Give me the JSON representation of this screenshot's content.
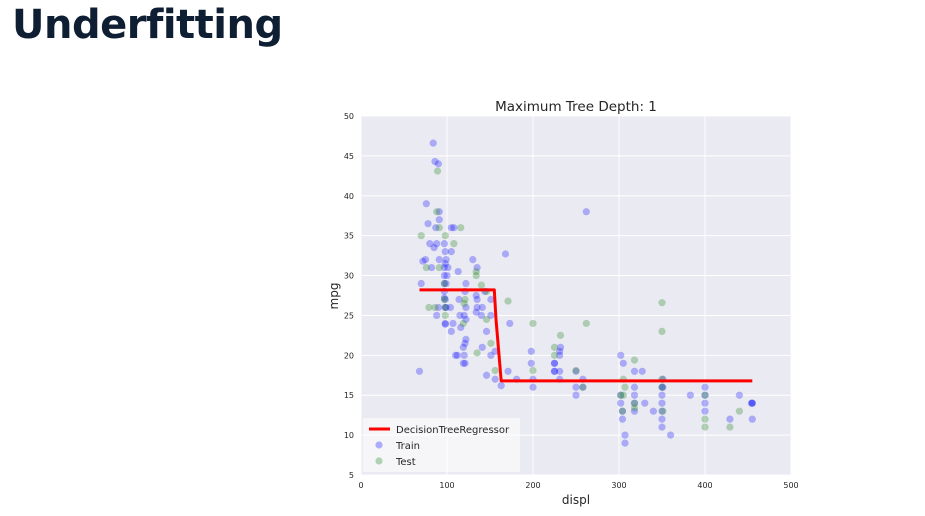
{
  "slide": {
    "title": "Underfitting"
  },
  "chart_data": {
    "type": "scatter",
    "title": "Maximum Tree Depth: 1",
    "xlabel": "displ",
    "ylabel": "mpg",
    "xlim": [
      0,
      500
    ],
    "ylim": [
      5,
      50
    ],
    "xticks": [
      0,
      100,
      200,
      300,
      400,
      500
    ],
    "yticks": [
      5,
      10,
      15,
      20,
      25,
      30,
      35,
      40,
      45,
      50
    ],
    "grid": true,
    "legend_position": "lower-left",
    "legend": [
      "DecisionTreeRegressor",
      "Train",
      "Test"
    ],
    "colors": {
      "plot_bg": "#eaeaf2",
      "grid": "#ffffff",
      "line": "#ff0000",
      "train": "#0000ff",
      "test": "#2e8b2e"
    },
    "line_series": {
      "name": "DecisionTreeRegressor",
      "x": [
        68,
        155,
        157,
        163,
        455
      ],
      "y": [
        28.2,
        28.2,
        24.5,
        16.8,
        16.8
      ]
    },
    "series": [
      {
        "name": "Train",
        "x": [
          68,
          70,
          72,
          75,
          76,
          78,
          80,
          82,
          84,
          85,
          86,
          87,
          88,
          88,
          90,
          90,
          91,
          91,
          91,
          97,
          97,
          97,
          97,
          97,
          97,
          98,
          98,
          98,
          98,
          98,
          98,
          99,
          99,
          99,
          100,
          101,
          104,
          105,
          105,
          105,
          107,
          108,
          110,
          112,
          113,
          114,
          115,
          116,
          119,
          119,
          120,
          120,
          121,
          121,
          121,
          122,
          122,
          122,
          122,
          130,
          134,
          134,
          135,
          135,
          135,
          140,
          141,
          141,
          144,
          146,
          146,
          151,
          151,
          151,
          156,
          156,
          163,
          168,
          171,
          173,
          181,
          198,
          198,
          200,
          200,
          225,
          225,
          225,
          225,
          231,
          231,
          231,
          231,
          232,
          250,
          250,
          250,
          258,
          258,
          262,
          302,
          302,
          302,
          304,
          304,
          305,
          307,
          307,
          318,
          318,
          318,
          318,
          318,
          327,
          330,
          340,
          350,
          350,
          350,
          350,
          350,
          350,
          351,
          351,
          360,
          383,
          400,
          400,
          400,
          400,
          429,
          440,
          454,
          455,
          455,
          455
        ],
        "y": [
          18,
          29,
          31.8,
          32,
          39,
          36.5,
          34,
          31,
          46.6,
          33.5,
          44.3,
          36,
          25,
          34,
          44,
          26,
          38,
          32,
          37,
          27.2,
          31,
          30,
          34,
          29,
          28,
          23.9,
          27,
          33,
          26,
          31.5,
          24,
          29,
          32,
          26,
          30,
          31,
          26,
          36,
          23,
          33,
          24,
          36,
          20,
          20,
          30.5,
          27,
          25,
          23.5,
          21,
          19,
          25,
          20,
          19,
          28,
          21.5,
          22,
          26,
          29,
          24.5,
          32,
          25.4,
          27.5,
          27,
          26,
          31,
          25,
          21,
          26,
          28,
          17.5,
          23,
          20,
          27,
          25,
          17,
          20.5,
          16.2,
          32.7,
          18,
          24,
          17,
          19,
          20.5,
          17,
          16,
          18,
          19,
          18,
          19,
          18,
          17,
          20.5,
          20,
          21,
          16,
          18,
          15,
          17,
          16,
          38,
          15,
          14,
          20,
          12,
          13,
          19,
          9,
          10,
          15,
          16,
          18,
          14,
          13,
          18,
          14,
          13,
          15,
          16,
          12,
          14,
          13,
          11,
          16,
          17,
          10,
          15,
          14,
          15,
          16,
          13,
          12,
          15,
          14,
          14,
          14,
          12
        ],
        "marker": "circle",
        "alpha": 0.28
      },
      {
        "name": "Test",
        "x": [
          70,
          76,
          79,
          86,
          88,
          89,
          91,
          91,
          97,
          97,
          98,
          98,
          98,
          108,
          116,
          119,
          120,
          121,
          134,
          134,
          135,
          140,
          146,
          146,
          151,
          156,
          171,
          200,
          200,
          225,
          225,
          232,
          250,
          258,
          262,
          302,
          304,
          305,
          305,
          307,
          318,
          318,
          318,
          350,
          350,
          350,
          350,
          351,
          400,
          400,
          400,
          429,
          440
        ],
        "y": [
          35,
          31,
          26,
          26,
          38,
          43.1,
          36,
          31,
          27,
          29,
          25,
          26,
          35,
          34,
          36,
          24,
          26.5,
          27,
          30.5,
          30,
          20.3,
          28.8,
          28,
          24.5,
          21.5,
          18.1,
          26.8,
          24,
          18.1,
          21,
          20,
          22.5,
          18.1,
          16,
          24,
          15,
          13,
          17,
          15,
          16,
          19.4,
          14,
          13.4,
          23,
          26.6,
          17,
          16,
          13,
          15,
          11,
          12,
          11,
          13
        ],
        "marker": "circle",
        "alpha": 0.33
      }
    ]
  }
}
